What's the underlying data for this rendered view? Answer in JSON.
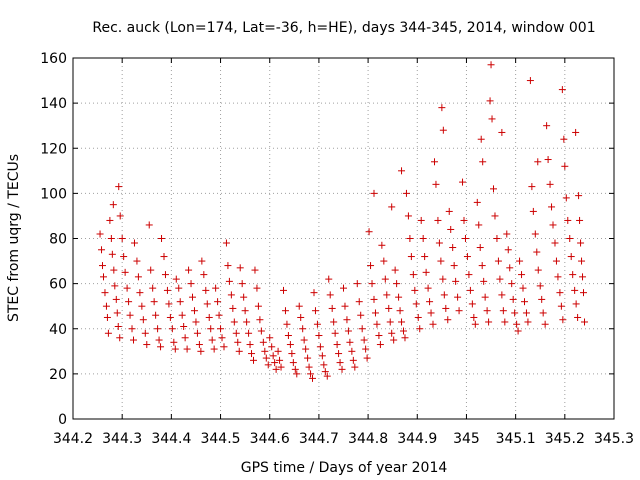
{
  "chart_data": {
    "type": "scatter",
    "title": "Rec. auck (Lon=174, Lat=-36, h=HE), days 344-345, 2014, window 001",
    "xlabel": "GPS time / Days of year 2014",
    "ylabel": "STEC from uqrg / TECUs",
    "xlim": [
      344.2,
      345.3
    ],
    "ylim": [
      0,
      160
    ],
    "xticks": [
      "344.2",
      "344.3",
      "344.4",
      "344.5",
      "344.6",
      "344.7",
      "344.8",
      "344.9",
      "345",
      "345.1",
      "345.2",
      "345.3"
    ],
    "yticks": [
      "0",
      "20",
      "40",
      "60",
      "80",
      "100",
      "120",
      "140",
      "160"
    ],
    "grid": true,
    "marker": "plus",
    "color": "#cc0000",
    "series": [
      {
        "points": [
          [
            344.255,
            82
          ],
          [
            344.258,
            75
          ],
          [
            344.26,
            68
          ],
          [
            344.262,
            63
          ],
          [
            344.265,
            56
          ],
          [
            344.268,
            50
          ],
          [
            344.27,
            45
          ],
          [
            344.272,
            38
          ],
          [
            344.275,
            88
          ],
          [
            344.278,
            80
          ],
          [
            344.28,
            73
          ],
          [
            344.283,
            66
          ],
          [
            344.285,
            59
          ],
          [
            344.288,
            53
          ],
          [
            344.29,
            47
          ],
          [
            344.292,
            41
          ],
          [
            344.295,
            36
          ],
          [
            344.282,
            95
          ],
          [
            344.293,
            103
          ],
          [
            344.296,
            90
          ],
          [
            344.3,
            80
          ],
          [
            344.303,
            72
          ],
          [
            344.306,
            65
          ],
          [
            344.31,
            58
          ],
          [
            344.313,
            52
          ],
          [
            344.316,
            46
          ],
          [
            344.32,
            40
          ],
          [
            344.323,
            35
          ],
          [
            344.325,
            78
          ],
          [
            344.33,
            70
          ],
          [
            344.333,
            63
          ],
          [
            344.336,
            56
          ],
          [
            344.34,
            50
          ],
          [
            344.343,
            44
          ],
          [
            344.347,
            38
          ],
          [
            344.35,
            33
          ],
          [
            344.355,
            86
          ],
          [
            344.358,
            66
          ],
          [
            344.362,
            58
          ],
          [
            344.365,
            52
          ],
          [
            344.368,
            46
          ],
          [
            344.372,
            40
          ],
          [
            344.375,
            35
          ],
          [
            344.378,
            32
          ],
          [
            344.38,
            80
          ],
          [
            344.385,
            72
          ],
          [
            344.388,
            64
          ],
          [
            344.392,
            57
          ],
          [
            344.395,
            51
          ],
          [
            344.398,
            45
          ],
          [
            344.402,
            40
          ],
          [
            344.405,
            34
          ],
          [
            344.408,
            31
          ],
          [
            344.41,
            62
          ],
          [
            344.415,
            58
          ],
          [
            344.418,
            52
          ],
          [
            344.422,
            46
          ],
          [
            344.425,
            41
          ],
          [
            344.428,
            36
          ],
          [
            344.432,
            31
          ],
          [
            344.435,
            66
          ],
          [
            344.44,
            60
          ],
          [
            344.443,
            54
          ],
          [
            344.447,
            48
          ],
          [
            344.45,
            43
          ],
          [
            344.453,
            38
          ],
          [
            344.457,
            33
          ],
          [
            344.46,
            30
          ],
          [
            344.462,
            70
          ],
          [
            344.466,
            64
          ],
          [
            344.47,
            57
          ],
          [
            344.473,
            51
          ],
          [
            344.477,
            45
          ],
          [
            344.48,
            40
          ],
          [
            344.483,
            35
          ],
          [
            344.487,
            31
          ],
          [
            344.49,
            58
          ],
          [
            344.494,
            52
          ],
          [
            344.497,
            46
          ],
          [
            344.5,
            40
          ],
          [
            344.503,
            36
          ],
          [
            344.507,
            32
          ],
          [
            344.512,
            78
          ],
          [
            344.515,
            68
          ],
          [
            344.518,
            61
          ],
          [
            344.522,
            55
          ],
          [
            344.525,
            49
          ],
          [
            344.528,
            43
          ],
          [
            344.532,
            38
          ],
          [
            344.535,
            34
          ],
          [
            344.538,
            30
          ],
          [
            344.54,
            67
          ],
          [
            344.544,
            60
          ],
          [
            344.547,
            54
          ],
          [
            344.55,
            48
          ],
          [
            344.553,
            43
          ],
          [
            344.557,
            38
          ],
          [
            344.56,
            33
          ],
          [
            344.563,
            29
          ],
          [
            344.567,
            26
          ],
          [
            344.57,
            66
          ],
          [
            344.574,
            58
          ],
          [
            344.577,
            50
          ],
          [
            344.58,
            44
          ],
          [
            344.583,
            39
          ],
          [
            344.587,
            34
          ],
          [
            344.59,
            30
          ],
          [
            344.593,
            27
          ],
          [
            344.597,
            24
          ],
          [
            344.6,
            36
          ],
          [
            344.604,
            32
          ],
          [
            344.607,
            28
          ],
          [
            344.61,
            25
          ],
          [
            344.613,
            22
          ],
          [
            344.617,
            30
          ],
          [
            344.62,
            26
          ],
          [
            344.623,
            23
          ],
          [
            344.628,
            57
          ],
          [
            344.632,
            48
          ],
          [
            344.635,
            42
          ],
          [
            344.638,
            37
          ],
          [
            344.642,
            33
          ],
          [
            344.645,
            29
          ],
          [
            344.648,
            25
          ],
          [
            344.652,
            22
          ],
          [
            344.655,
            20
          ],
          [
            344.66,
            50
          ],
          [
            344.663,
            45
          ],
          [
            344.667,
            40
          ],
          [
            344.67,
            35
          ],
          [
            344.673,
            31
          ],
          [
            344.677,
            27
          ],
          [
            344.68,
            23
          ],
          [
            344.683,
            20
          ],
          [
            344.687,
            18
          ],
          [
            344.69,
            56
          ],
          [
            344.693,
            48
          ],
          [
            344.697,
            42
          ],
          [
            344.7,
            37
          ],
          [
            344.703,
            32
          ],
          [
            344.707,
            28
          ],
          [
            344.71,
            24
          ],
          [
            344.713,
            21
          ],
          [
            344.717,
            19
          ],
          [
            344.72,
            62
          ],
          [
            344.723,
            55
          ],
          [
            344.727,
            49
          ],
          [
            344.73,
            43
          ],
          [
            344.733,
            38
          ],
          [
            344.737,
            33
          ],
          [
            344.74,
            29
          ],
          [
            344.743,
            25
          ],
          [
            344.747,
            22
          ],
          [
            344.75,
            58
          ],
          [
            344.753,
            50
          ],
          [
            344.757,
            44
          ],
          [
            344.76,
            39
          ],
          [
            344.763,
            34
          ],
          [
            344.767,
            30
          ],
          [
            344.77,
            26
          ],
          [
            344.773,
            23
          ],
          [
            344.778,
            60
          ],
          [
            344.782,
            52
          ],
          [
            344.785,
            46
          ],
          [
            344.788,
            40
          ],
          [
            344.792,
            35
          ],
          [
            344.795,
            31
          ],
          [
            344.798,
            27
          ],
          [
            344.802,
            83
          ],
          [
            344.805,
            68
          ],
          [
            344.808,
            60
          ],
          [
            344.812,
            53
          ],
          [
            344.815,
            47
          ],
          [
            344.818,
            42
          ],
          [
            344.822,
            37
          ],
          [
            344.825,
            33
          ],
          [
            344.812,
            100
          ],
          [
            344.828,
            77
          ],
          [
            344.832,
            70
          ],
          [
            344.835,
            62
          ],
          [
            344.838,
            55
          ],
          [
            344.842,
            49
          ],
          [
            344.845,
            43
          ],
          [
            344.848,
            38
          ],
          [
            344.852,
            35
          ],
          [
            344.848,
            94
          ],
          [
            344.855,
            66
          ],
          [
            344.858,
            60
          ],
          [
            344.862,
            54
          ],
          [
            344.865,
            48
          ],
          [
            344.868,
            43
          ],
          [
            344.872,
            39
          ],
          [
            344.875,
            36
          ],
          [
            344.868,
            110
          ],
          [
            344.878,
            100
          ],
          [
            344.882,
            90
          ],
          [
            344.885,
            80
          ],
          [
            344.888,
            72
          ],
          [
            344.892,
            64
          ],
          [
            344.895,
            57
          ],
          [
            344.898,
            51
          ],
          [
            344.902,
            45
          ],
          [
            344.905,
            40
          ],
          [
            344.908,
            88
          ],
          [
            344.912,
            80
          ],
          [
            344.915,
            72
          ],
          [
            344.918,
            65
          ],
          [
            344.922,
            58
          ],
          [
            344.925,
            52
          ],
          [
            344.928,
            47
          ],
          [
            344.932,
            42
          ],
          [
            344.935,
            114
          ],
          [
            344.938,
            104
          ],
          [
            344.942,
            88
          ],
          [
            344.945,
            78
          ],
          [
            344.948,
            70
          ],
          [
            344.952,
            62
          ],
          [
            344.955,
            55
          ],
          [
            344.958,
            49
          ],
          [
            344.962,
            44
          ],
          [
            344.95,
            138
          ],
          [
            344.953,
            128
          ],
          [
            344.965,
            92
          ],
          [
            344.968,
            84
          ],
          [
            344.972,
            76
          ],
          [
            344.975,
            68
          ],
          [
            344.978,
            61
          ],
          [
            344.982,
            54
          ],
          [
            344.985,
            48
          ],
          [
            344.992,
            105
          ],
          [
            344.995,
            88
          ],
          [
            344.998,
            80
          ],
          [
            345.002,
            72
          ],
          [
            345.005,
            64
          ],
          [
            345.008,
            57
          ],
          [
            345.012,
            51
          ],
          [
            345.015,
            45
          ],
          [
            345.018,
            42
          ],
          [
            345.022,
            96
          ],
          [
            345.025,
            86
          ],
          [
            345.028,
            76
          ],
          [
            345.032,
            68
          ],
          [
            345.035,
            61
          ],
          [
            345.038,
            54
          ],
          [
            345.042,
            48
          ],
          [
            345.045,
            43
          ],
          [
            345.03,
            124
          ],
          [
            345.033,
            114
          ],
          [
            345.048,
            141
          ],
          [
            345.05,
            157
          ],
          [
            345.052,
            133
          ],
          [
            345.055,
            102
          ],
          [
            345.058,
            90
          ],
          [
            345.062,
            80
          ],
          [
            345.065,
            70
          ],
          [
            345.068,
            62
          ],
          [
            345.072,
            55
          ],
          [
            345.075,
            48
          ],
          [
            345.078,
            43
          ],
          [
            345.072,
            127
          ],
          [
            345.082,
            82
          ],
          [
            345.085,
            75
          ],
          [
            345.088,
            67
          ],
          [
            345.092,
            60
          ],
          [
            345.095,
            53
          ],
          [
            345.098,
            47
          ],
          [
            345.102,
            42
          ],
          [
            345.105,
            39
          ],
          [
            345.108,
            70
          ],
          [
            345.112,
            64
          ],
          [
            345.115,
            58
          ],
          [
            345.118,
            52
          ],
          [
            345.122,
            47
          ],
          [
            345.125,
            43
          ],
          [
            345.13,
            150
          ],
          [
            345.133,
            103
          ],
          [
            345.136,
            92
          ],
          [
            345.14,
            82
          ],
          [
            345.143,
            74
          ],
          [
            345.146,
            66
          ],
          [
            345.15,
            59
          ],
          [
            345.153,
            53
          ],
          [
            345.156,
            47
          ],
          [
            345.16,
            42
          ],
          [
            345.145,
            114
          ],
          [
            345.163,
            130
          ],
          [
            345.166,
            115
          ],
          [
            345.17,
            104
          ],
          [
            345.173,
            94
          ],
          [
            345.176,
            86
          ],
          [
            345.18,
            78
          ],
          [
            345.183,
            70
          ],
          [
            345.186,
            63
          ],
          [
            345.19,
            56
          ],
          [
            345.193,
            50
          ],
          [
            345.196,
            44
          ],
          [
            345.195,
            146
          ],
          [
            345.198,
            124
          ],
          [
            345.2,
            112
          ],
          [
            345.203,
            98
          ],
          [
            345.206,
            88
          ],
          [
            345.21,
            80
          ],
          [
            345.213,
            72
          ],
          [
            345.216,
            64
          ],
          [
            345.22,
            57
          ],
          [
            345.223,
            51
          ],
          [
            345.226,
            45
          ],
          [
            345.222,
            127
          ],
          [
            345.228,
            99
          ],
          [
            345.23,
            88
          ],
          [
            345.232,
            78
          ],
          [
            345.234,
            70
          ],
          [
            345.236,
            63
          ],
          [
            345.238,
            56
          ],
          [
            345.24,
            43
          ]
        ]
      }
    ]
  }
}
